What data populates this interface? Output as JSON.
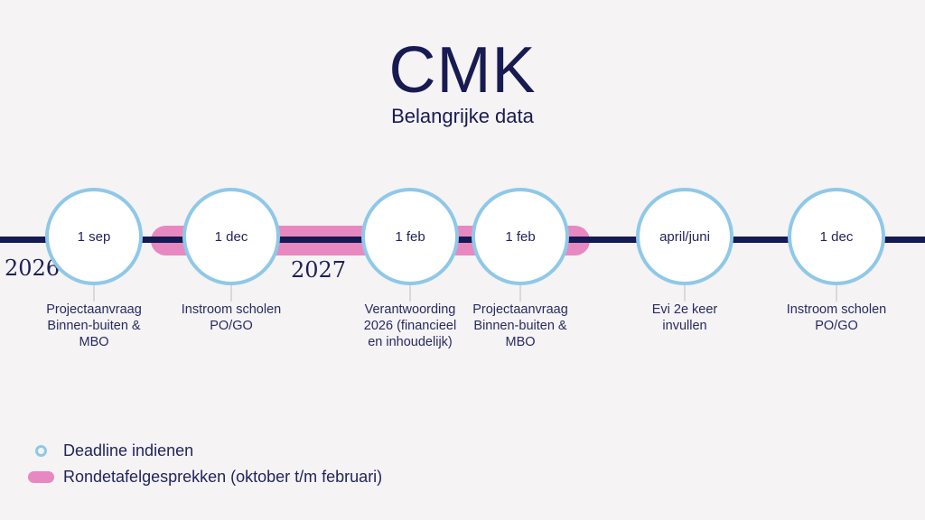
{
  "title": "CMK",
  "subtitle": "Belangrijke data",
  "colors": {
    "background": "#f5f3f4",
    "navy": "#181b52",
    "pink": "#e888c0",
    "light_blue": "#8fc8e8",
    "connector_gray": "#d9d9dd"
  },
  "timeline": {
    "years": [
      {
        "label": "2026"
      },
      {
        "label": "2027"
      }
    ],
    "events": [
      {
        "date": "1 sep",
        "label": "Projectaanvraag\nBinnen-buiten &\nMBO"
      },
      {
        "date": "1 dec",
        "label": "Instroom scholen\nPO/GO"
      },
      {
        "date": "1 feb",
        "label": "Verantwoording\n2026 (financieel\nen inhoudelijk)"
      },
      {
        "date": "1 feb",
        "label": "Projectaanvraag\nBinnen-buiten &\nMBO"
      },
      {
        "date": "april/juni",
        "label": "Evi 2e keer\ninvullen"
      },
      {
        "date": "1 dec",
        "label": "Instroom scholen\nPO/GO"
      }
    ]
  },
  "legend": {
    "items": [
      {
        "icon": "circle-outline",
        "label": "Deadline indienen"
      },
      {
        "icon": "pink-pill",
        "label": "Rondetafelgesprekken (oktober t/m februari)"
      }
    ]
  }
}
